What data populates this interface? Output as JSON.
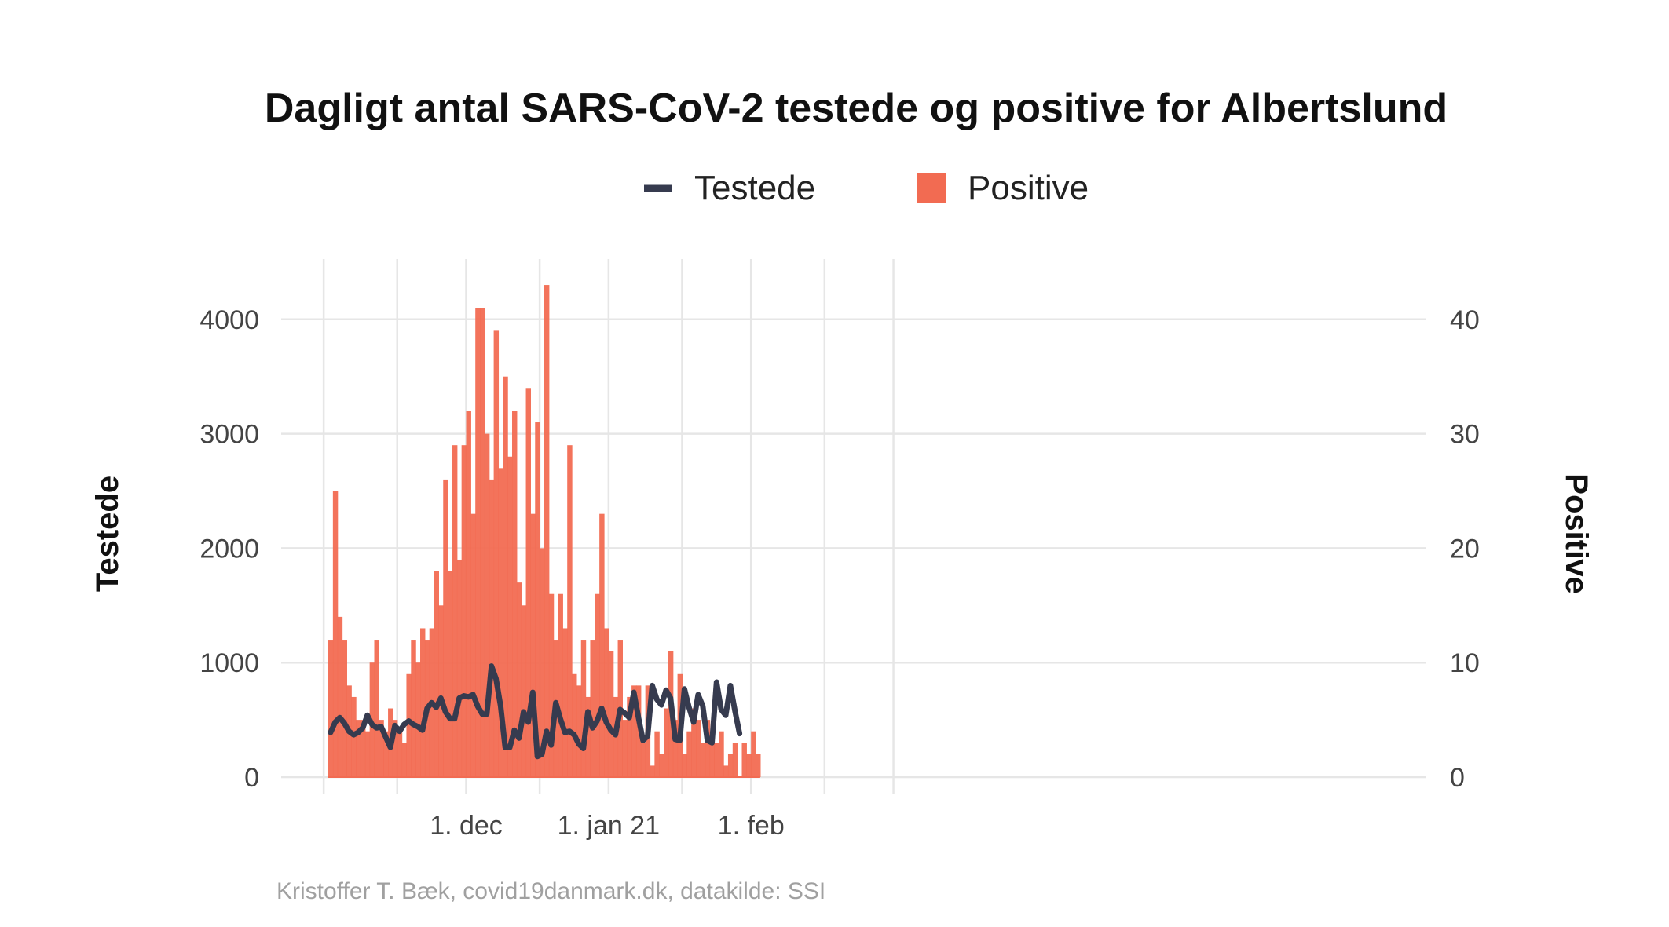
{
  "chart_data": {
    "type": "bar",
    "title": "Dagligt antal SARS-CoV-2 testede og positive for Albertslund",
    "legend": {
      "placement": "top",
      "entries": [
        {
          "label": "Testede",
          "kind": "line",
          "color": "#363b4f"
        },
        {
          "label": "Positive",
          "kind": "bar",
          "color": "#f26b52"
        }
      ]
    },
    "ylabel_left": "Testede",
    "ylabel_right": "Positive",
    "ylim_left": [
      0,
      4500
    ],
    "ylim_right": [
      0,
      45
    ],
    "yticks_left": [
      0,
      1000,
      2000,
      3000,
      4000
    ],
    "yticks_right": [
      0,
      10,
      20,
      30,
      40
    ],
    "xticks": [
      {
        "date": "2020-12-01",
        "label": "1. dec"
      },
      {
        "date": "2021-01-01",
        "label": "1. jan 21"
      },
      {
        "date": "2021-02-01",
        "label": "1. feb"
      }
    ],
    "xlim": [
      "2020-11-01",
      "2021-02-28"
    ],
    "start_date": "2020-11-01",
    "grid": true,
    "series": [
      {
        "name": "Positive",
        "type": "bar",
        "axis": "right",
        "color": "#f26b52",
        "values": [
          12,
          25,
          14,
          12,
          8,
          7,
          5,
          5,
          4,
          10,
          12,
          5,
          4,
          6,
          5,
          4,
          3,
          9,
          12,
          10,
          13,
          12,
          13,
          18,
          15,
          26,
          18,
          29,
          19,
          29,
          32,
          23,
          41,
          41,
          30,
          26,
          39,
          27,
          35,
          28,
          32,
          17,
          15,
          34,
          23,
          31,
          20,
          43,
          16,
          12,
          16,
          13,
          29,
          9,
          8,
          12,
          7,
          12,
          16,
          23,
          13,
          11,
          7,
          12,
          5,
          7,
          8,
          8,
          3,
          8,
          1,
          4,
          2,
          6,
          11,
          5,
          9,
          2,
          4,
          6,
          5,
          3,
          5,
          4,
          3,
          4,
          1,
          2,
          3,
          0,
          3,
          2,
          4,
          2
        ]
      },
      {
        "name": "Testede",
        "type": "line",
        "axis": "left",
        "color": "#363b4f",
        "values": [
          390,
          480,
          520,
          470,
          400,
          370,
          390,
          430,
          540,
          460,
          430,
          440,
          350,
          260,
          450,
          400,
          460,
          490,
          460,
          440,
          410,
          600,
          650,
          610,
          690,
          570,
          510,
          510,
          690,
          710,
          700,
          720,
          620,
          550,
          550,
          970,
          860,
          620,
          260,
          260,
          410,
          340,
          570,
          480,
          740,
          180,
          200,
          400,
          280,
          650,
          510,
          390,
          400,
          370,
          290,
          250,
          570,
          430,
          490,
          600,
          480,
          410,
          370,
          590,
          560,
          520,
          740,
          520,
          320,
          360,
          800,
          680,
          630,
          760,
          690,
          330,
          320,
          770,
          610,
          480,
          720,
          620,
          320,
          300,
          830,
          590,
          540,
          800,
          580,
          380
        ]
      }
    ]
  }
}
